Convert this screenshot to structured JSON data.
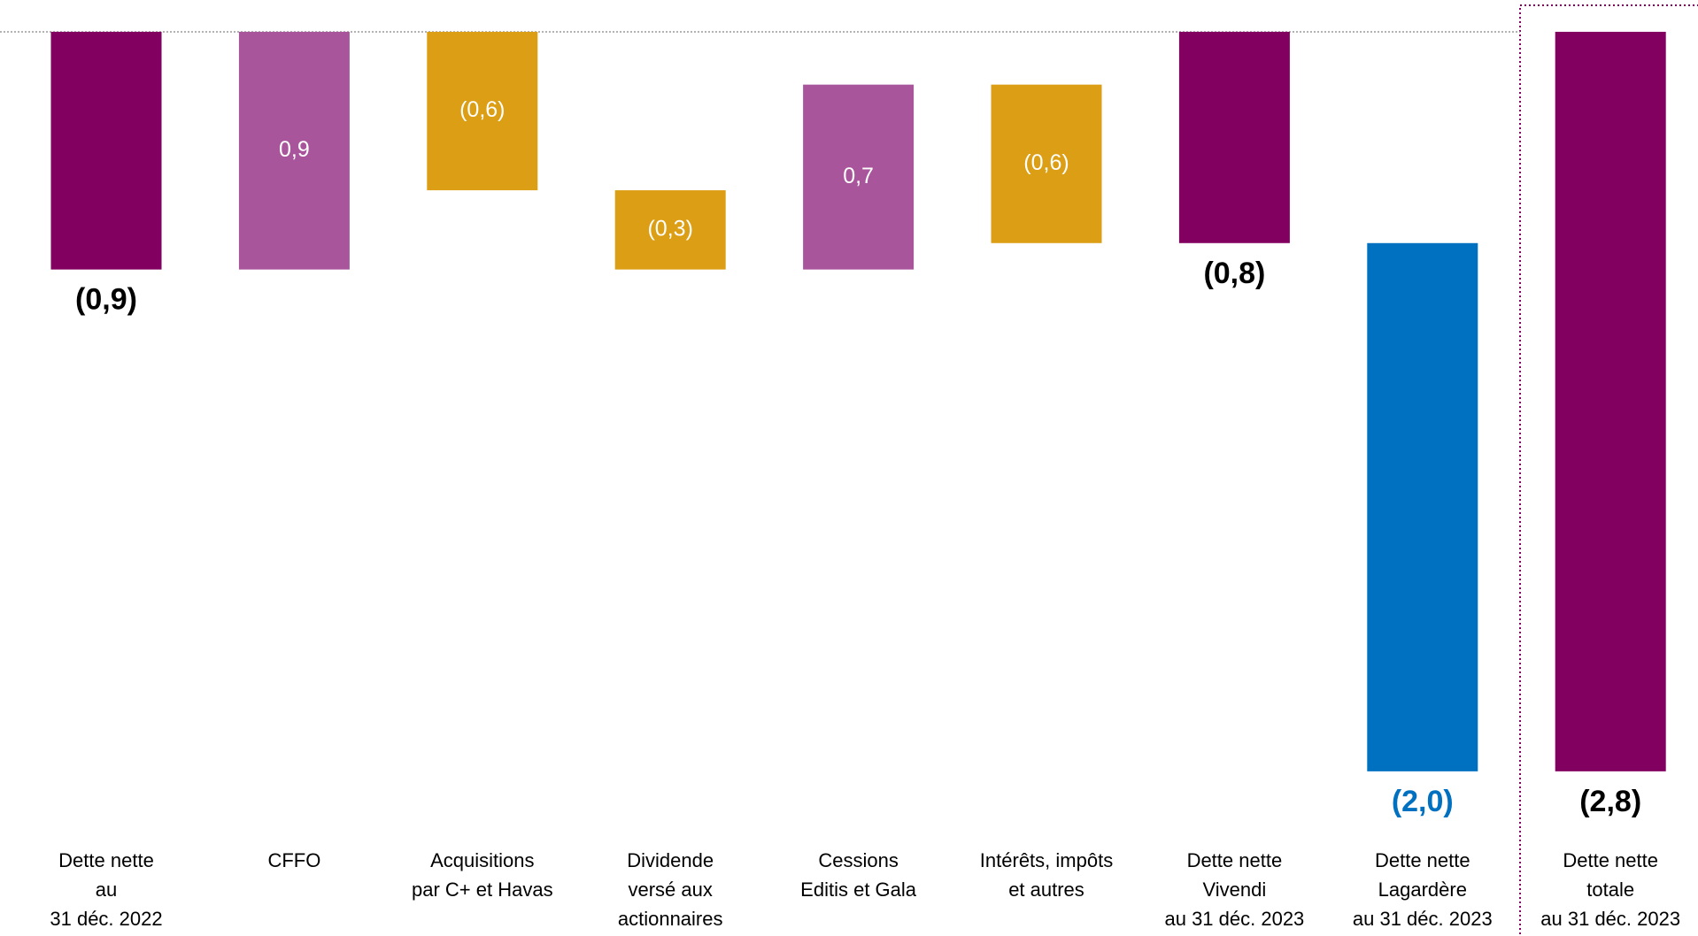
{
  "chart_data": {
    "type": "waterfall",
    "categories": [
      "Dette nette\nau\n31 déc. 2022",
      "CFFO",
      "Acquisitions\npar C+ et Havas",
      "Dividende\nversé aux\nactionnaires",
      "Cessions\nEditis et Gala",
      "Intérêts, impôts\net autres",
      "Dette nette\nVivendi\nau 31 déc. 2023",
      "Dette nette\nLagardère\nau 31 déc. 2023",
      "Dette nette\ntotale\nau 31 déc. 2023"
    ],
    "values": [
      -0.9,
      0.9,
      -0.6,
      -0.3,
      0.7,
      -0.6,
      -0.8,
      -2.0,
      -2.8
    ],
    "value_labels": [
      "(0,9)",
      "0,9",
      "(0,6)",
      "(0,3)",
      "0,7",
      "(0,6)",
      "(0,8)",
      "(2,0)",
      "(2,8)"
    ],
    "measure": [
      "total",
      "relative",
      "relative",
      "relative",
      "relative",
      "relative",
      "total",
      "relative",
      "total"
    ],
    "colors": [
      "#82005f",
      "#a8559b",
      "#dc9e14",
      "#dc9e14",
      "#a8559b",
      "#dc9e14",
      "#82005f",
      "#0070c0",
      "#82005f"
    ],
    "label_colors": [
      "#000000",
      "#ffffff",
      "#ffffff",
      "#ffffff",
      "#ffffff",
      "#ffffff",
      "#000000",
      "#0070c0",
      "#000000"
    ],
    "ylim": [
      -3.4,
      0.04
    ]
  }
}
